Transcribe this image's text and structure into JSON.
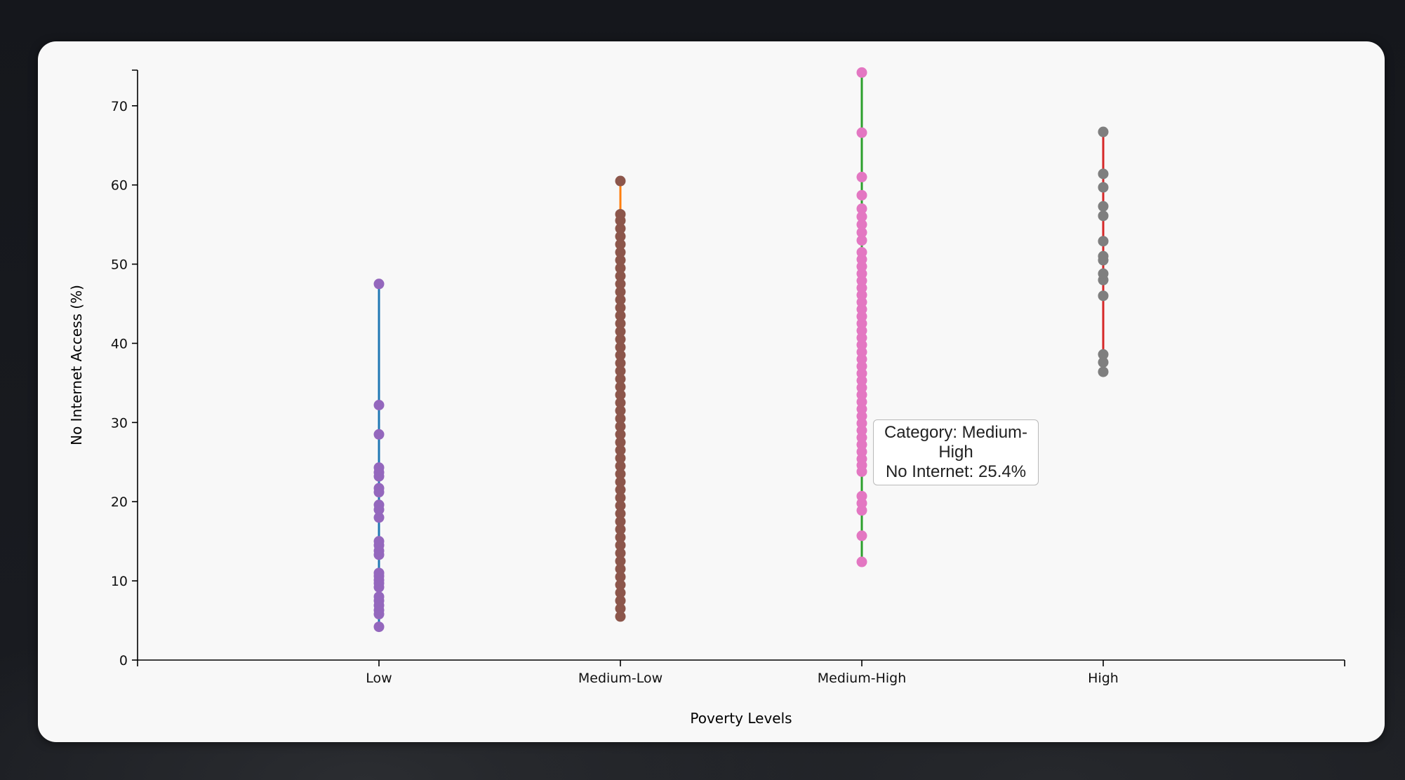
{
  "chart_data": {
    "type": "scatter",
    "xlabel": "Poverty Levels",
    "ylabel": "No Internet Access (%)",
    "ylim": [
      0,
      74.5
    ],
    "yticks": [
      0,
      10,
      20,
      30,
      40,
      50,
      60,
      70
    ],
    "categories": [
      "Low",
      "Medium-Low",
      "Medium-High",
      "High"
    ],
    "grid": false,
    "series": [
      {
        "category": "Low",
        "line_color": "#1f77b4",
        "point_color": "#9467bd",
        "min": 4.2,
        "max": 47.5,
        "values": [
          4.2,
          5.8,
          6.3,
          6.9,
          7.5,
          8.0,
          9.2,
          9.7,
          10.1,
          10.6,
          11.0,
          13.3,
          13.8,
          14.5,
          15.0,
          18.0,
          19.0,
          19.6,
          21.2,
          21.7,
          23.2,
          23.7,
          24.3,
          28.5,
          32.2,
          47.5
        ]
      },
      {
        "category": "Medium-Low",
        "line_color": "#ff7f0e",
        "point_color": "#8c564b",
        "min": 5.5,
        "max": 60.5,
        "values": [
          5.5,
          6.5,
          7.5,
          8.5,
          9.5,
          10.5,
          11.5,
          12.5,
          13.5,
          14.5,
          15.5,
          16.5,
          17.5,
          18.5,
          19.5,
          20.5,
          21.5,
          22.5,
          23.5,
          24.5,
          25.5,
          26.5,
          27.5,
          28.5,
          29.5,
          30.5,
          31.5,
          32.5,
          33.5,
          34.5,
          35.5,
          36.5,
          37.5,
          38.5,
          39.5,
          40.5,
          41.5,
          42.5,
          43.5,
          44.5,
          45.5,
          46.5,
          47.5,
          48.5,
          49.5,
          50.5,
          51.5,
          52.5,
          53.5,
          54.5,
          55.5,
          56.3,
          60.5
        ]
      },
      {
        "category": "Medium-High",
        "line_color": "#2ca02c",
        "point_color": "#e377c2",
        "min": 12.4,
        "max": 74.2,
        "values": [
          12.4,
          15.7,
          18.9,
          19.8,
          20.7,
          23.8,
          24.6,
          25.4,
          26.3,
          27.2,
          28.1,
          29.0,
          29.9,
          30.8,
          31.7,
          32.6,
          33.5,
          34.4,
          35.3,
          36.2,
          37.1,
          38.0,
          38.9,
          39.8,
          40.7,
          41.6,
          42.5,
          43.4,
          44.3,
          45.2,
          46.1,
          47.0,
          47.9,
          48.8,
          49.7,
          50.6,
          51.5,
          53.0,
          54.0,
          55.0,
          56.0,
          57.0,
          58.7,
          61.0,
          66.6,
          74.2
        ]
      },
      {
        "category": "High",
        "line_color": "#d62728",
        "point_color": "#7f7f7f",
        "min": 36.4,
        "max": 66.7,
        "values": [
          36.4,
          37.6,
          38.6,
          46.0,
          48.0,
          48.8,
          50.5,
          51.0,
          52.9,
          56.1,
          57.3,
          59.7,
          61.4,
          66.7
        ]
      }
    ],
    "tooltip": {
      "line1": "Category: Medium-",
      "line2": "High",
      "line3": "No Internet: 25.4%"
    }
  }
}
